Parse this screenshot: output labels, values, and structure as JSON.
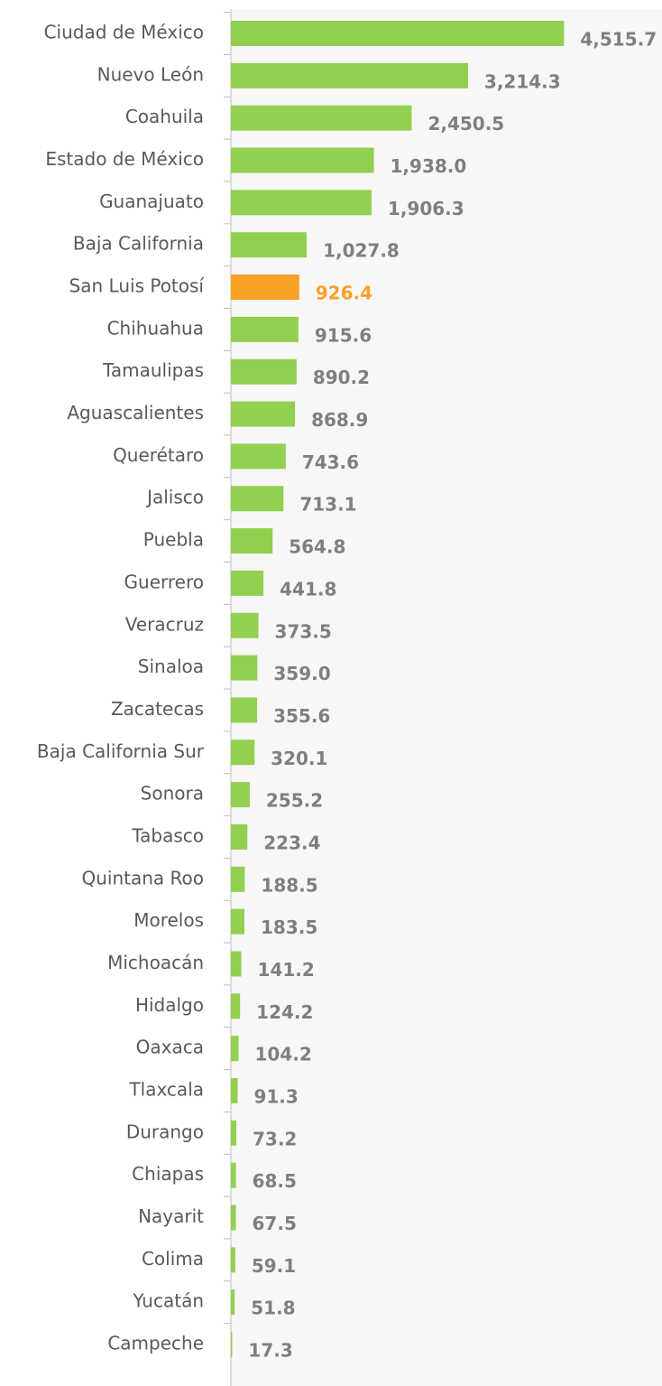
{
  "chart_data": {
    "type": "hbar",
    "categories": [
      "Ciudad de México",
      "Nuevo León",
      "Coahuila",
      "Estado de México",
      "Guanajuato",
      "Baja California",
      "San Luis Potosí",
      "Chihuahua",
      "Tamaulipas",
      "Aguascalientes",
      "Querétaro",
      "Jalisco",
      "Puebla",
      "Guerrero",
      "Veracruz",
      "Sinaloa",
      "Zacatecas",
      "Baja California Sur",
      "Sonora",
      "Tabasco",
      "Quintana Roo",
      "Morelos",
      "Michoacán",
      "Hidalgo",
      "Oaxaca",
      "Tlaxcala",
      "Durango",
      "Chiapas",
      "Nayarit",
      "Colima",
      "Yucatán",
      "Campeche"
    ],
    "values": [
      4515.7,
      3214.3,
      2450.5,
      1938.0,
      1906.3,
      1027.8,
      926.4,
      915.6,
      890.2,
      868.9,
      743.6,
      713.1,
      564.8,
      441.8,
      373.5,
      359.0,
      355.6,
      320.1,
      255.2,
      223.4,
      188.5,
      183.5,
      141.2,
      124.2,
      104.2,
      91.3,
      73.2,
      68.5,
      67.5,
      59.1,
      51.8,
      17.3
    ],
    "value_labels": [
      "4,515.7",
      "3,214.3",
      "2,450.5",
      "1,938.0",
      "1,906.3",
      "1,027.8",
      "926.4",
      "915.6",
      "890.2",
      "868.9",
      "743.6",
      "713.1",
      "564.8",
      "441.8",
      "373.5",
      "359.0",
      "355.6",
      "320.1",
      "255.2",
      "223.4",
      "188.5",
      "183.5",
      "141.2",
      "124.2",
      "104.2",
      "91.3",
      "73.2",
      "68.5",
      "67.5",
      "59.1",
      "51.8",
      "17.3"
    ],
    "colors": [
      "#92d050",
      "#92d050",
      "#92d050",
      "#92d050",
      "#92d050",
      "#92d050",
      "#f8a227",
      "#92d050",
      "#92d050",
      "#92d050",
      "#92d050",
      "#92d050",
      "#92d050",
      "#92d050",
      "#92d050",
      "#92d050",
      "#92d050",
      "#92d050",
      "#92d050",
      "#92d050",
      "#92d050",
      "#92d050",
      "#92d050",
      "#92d050",
      "#92d050",
      "#92d050",
      "#92d050",
      "#92d050",
      "#92d050",
      "#92d050",
      "#92d050",
      "#92d050"
    ],
    "value_label_colors": [
      "#7f7f7f",
      "#7f7f7f",
      "#7f7f7f",
      "#7f7f7f",
      "#7f7f7f",
      "#7f7f7f",
      "#f8a227",
      "#7f7f7f",
      "#7f7f7f",
      "#7f7f7f",
      "#7f7f7f",
      "#7f7f7f",
      "#7f7f7f",
      "#7f7f7f",
      "#7f7f7f",
      "#7f7f7f",
      "#7f7f7f",
      "#7f7f7f",
      "#7f7f7f",
      "#7f7f7f",
      "#7f7f7f",
      "#7f7f7f",
      "#7f7f7f",
      "#7f7f7f",
      "#7f7f7f",
      "#7f7f7f",
      "#7f7f7f",
      "#7f7f7f",
      "#7f7f7f",
      "#7f7f7f",
      "#7f7f7f",
      "#7f7f7f"
    ],
    "xlim": [
      0,
      5000
    ]
  }
}
